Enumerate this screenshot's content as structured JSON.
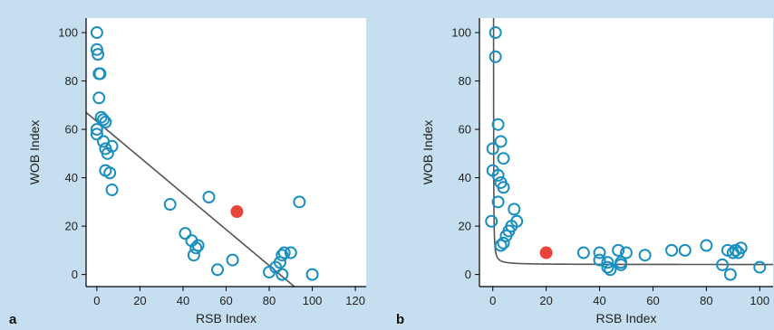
{
  "chart_data": [
    {
      "panel_label": "a",
      "type": "scatter",
      "xlabel": "RSB Index",
      "ylabel": "WOB Index",
      "xlim": [
        -5,
        125
      ],
      "ylim": [
        -5,
        106
      ],
      "xticks": [
        0,
        20,
        40,
        60,
        80,
        100,
        120
      ],
      "yticks": [
        0,
        20,
        40,
        60,
        80,
        100
      ],
      "grid": false,
      "series": [
        {
          "marker": "open-circle",
          "color": "#1a8fc0",
          "points": [
            [
              0,
              100
            ],
            [
              0,
              93
            ],
            [
              0.5,
              91
            ],
            [
              1,
              83
            ],
            [
              1.5,
              83
            ],
            [
              1,
              73
            ],
            [
              2,
              65
            ],
            [
              3,
              64
            ],
            [
              4,
              63
            ],
            [
              0,
              60
            ],
            [
              0,
              58
            ],
            [
              3,
              55
            ],
            [
              4,
              52
            ],
            [
              5,
              50
            ],
            [
              7,
              53
            ],
            [
              4,
              43
            ],
            [
              6,
              42
            ],
            [
              7,
              35
            ],
            [
              34,
              29
            ],
            [
              41,
              17
            ],
            [
              44,
              14
            ],
            [
              45,
              8
            ],
            [
              46,
              11
            ],
            [
              47,
              12
            ],
            [
              52,
              32
            ],
            [
              56,
              2
            ],
            [
              63,
              6
            ],
            [
              80,
              1
            ],
            [
              83,
              3
            ],
            [
              85,
              5
            ],
            [
              86,
              8
            ],
            [
              87,
              9
            ],
            [
              86,
              0
            ],
            [
              90,
              9
            ],
            [
              94,
              30
            ],
            [
              100,
              0
            ]
          ]
        },
        {
          "marker": "filled-circle",
          "color": "#e8443a",
          "points": [
            [
              65,
              26
            ]
          ]
        }
      ],
      "fit_line": {
        "type": "linear",
        "from": [
          -5,
          67
        ],
        "to": [
          93,
          -6
        ],
        "color": "#555555"
      }
    },
    {
      "panel_label": "b",
      "type": "scatter",
      "xlabel": "RSB Index",
      "ylabel": "WOB Index",
      "xlim": [
        -5,
        105
      ],
      "ylim": [
        -5,
        106
      ],
      "xticks": [
        0,
        20,
        40,
        60,
        80,
        100
      ],
      "yticks": [
        0,
        20,
        40,
        60,
        80,
        100
      ],
      "grid": false,
      "series": [
        {
          "marker": "open-circle",
          "color": "#1a8fc0",
          "points": [
            [
              1,
              100
            ],
            [
              1,
              90
            ],
            [
              2,
              62
            ],
            [
              3,
              55
            ],
            [
              0,
              52
            ],
            [
              4,
              48
            ],
            [
              0,
              43
            ],
            [
              2,
              41
            ],
            [
              3,
              38
            ],
            [
              4,
              36
            ],
            [
              2,
              30
            ],
            [
              8,
              27
            ],
            [
              -0.5,
              22
            ],
            [
              9,
              22
            ],
            [
              7,
              20
            ],
            [
              6,
              18
            ],
            [
              5,
              16
            ],
            [
              4,
              13
            ],
            [
              3,
              12
            ],
            [
              34,
              9
            ],
            [
              40,
              9
            ],
            [
              40,
              6
            ],
            [
              43,
              3
            ],
            [
              43,
              5
            ],
            [
              44,
              2
            ],
            [
              47,
              10
            ],
            [
              48,
              4
            ],
            [
              48,
              5
            ],
            [
              50,
              9
            ],
            [
              57,
              8
            ],
            [
              67,
              10
            ],
            [
              72,
              10
            ],
            [
              80,
              12
            ],
            [
              86,
              4
            ],
            [
              88,
              10
            ],
            [
              89,
              0
            ],
            [
              90,
              9
            ],
            [
              91,
              10
            ],
            [
              92,
              9
            ],
            [
              93,
              11
            ],
            [
              100,
              3
            ]
          ]
        },
        {
          "marker": "filled-circle",
          "color": "#e8443a",
          "points": [
            [
              20,
              9
            ]
          ]
        }
      ],
      "fit_curve": {
        "type": "hyperbolic",
        "y_of_x": "4.1 + 4.3/(x-0.25)",
        "color": "#555555"
      }
    }
  ]
}
